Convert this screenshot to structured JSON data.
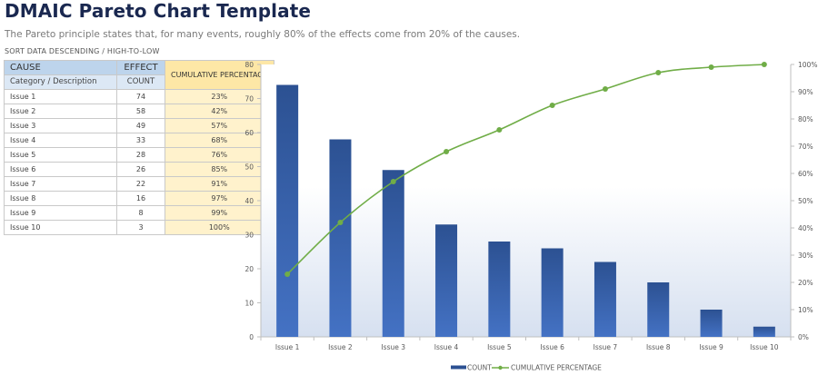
{
  "header": {
    "title": "DMAIC Pareto Chart Template",
    "subtitle": "The Pareto principle states that, for many events, roughly 80% of the effects come from 20% of the causes.",
    "sort_note": "SORT DATA DESCENDING / HIGH-TO-LOW"
  },
  "table": {
    "head1": {
      "cause": "CAUSE",
      "effect": "EFFECT",
      "cumulative": "CUMULATIVE PERCENTAGE"
    },
    "head2": {
      "cause": "Category / Description",
      "effect": "COUNT"
    },
    "rows": [
      {
        "cause": "Issue 1",
        "count": "74",
        "pct": "23%"
      },
      {
        "cause": "Issue 2",
        "count": "58",
        "pct": "42%"
      },
      {
        "cause": "Issue 3",
        "count": "49",
        "pct": "57%"
      },
      {
        "cause": "Issue 4",
        "count": "33",
        "pct": "68%"
      },
      {
        "cause": "Issue 5",
        "count": "28",
        "pct": "76%"
      },
      {
        "cause": "Issue 6",
        "count": "26",
        "pct": "85%"
      },
      {
        "cause": "Issue 7",
        "count": "22",
        "pct": "91%"
      },
      {
        "cause": "Issue 8",
        "count": "16",
        "pct": "97%"
      },
      {
        "cause": "Issue 9",
        "count": "8",
        "pct": "99%"
      },
      {
        "cause": "Issue 10",
        "count": "3",
        "pct": "100%"
      }
    ]
  },
  "colors": {
    "bar_top": "#2c5192",
    "bar_bottom": "#4472c4",
    "line": "#70ad47",
    "axis": "#bfbfbf",
    "tick_text": "#595959"
  },
  "chart_data": {
    "type": "bar",
    "title": "",
    "xlabel": "",
    "ylabel": "",
    "categories": [
      "Issue 1",
      "Issue 2",
      "Issue 3",
      "Issue 4",
      "Issue 5",
      "Issue 6",
      "Issue 7",
      "Issue 8",
      "Issue 9",
      "Issue 10"
    ],
    "series": [
      {
        "name": "COUNT",
        "type": "bar",
        "axis": "left",
        "values": [
          74,
          58,
          49,
          33,
          28,
          26,
          22,
          16,
          8,
          3
        ]
      },
      {
        "name": "CUMULATIVE PERCENTAGE",
        "type": "line",
        "axis": "right",
        "values": [
          23,
          42,
          57,
          68,
          76,
          85,
          91,
          97,
          99,
          100
        ]
      }
    ],
    "ylim": [
      0,
      80
    ],
    "yticks": [
      0,
      10,
      20,
      30,
      40,
      50,
      60,
      70,
      80
    ],
    "y2lim": [
      0,
      100
    ],
    "y2ticks": [
      "0%",
      "10%",
      "20%",
      "30%",
      "40%",
      "50%",
      "60%",
      "70%",
      "80%",
      "90%",
      "100%"
    ],
    "grid": false,
    "legend_position": "bottom",
    "legend": [
      "COUNT",
      "CUMULATIVE PERCENTAGE"
    ]
  }
}
